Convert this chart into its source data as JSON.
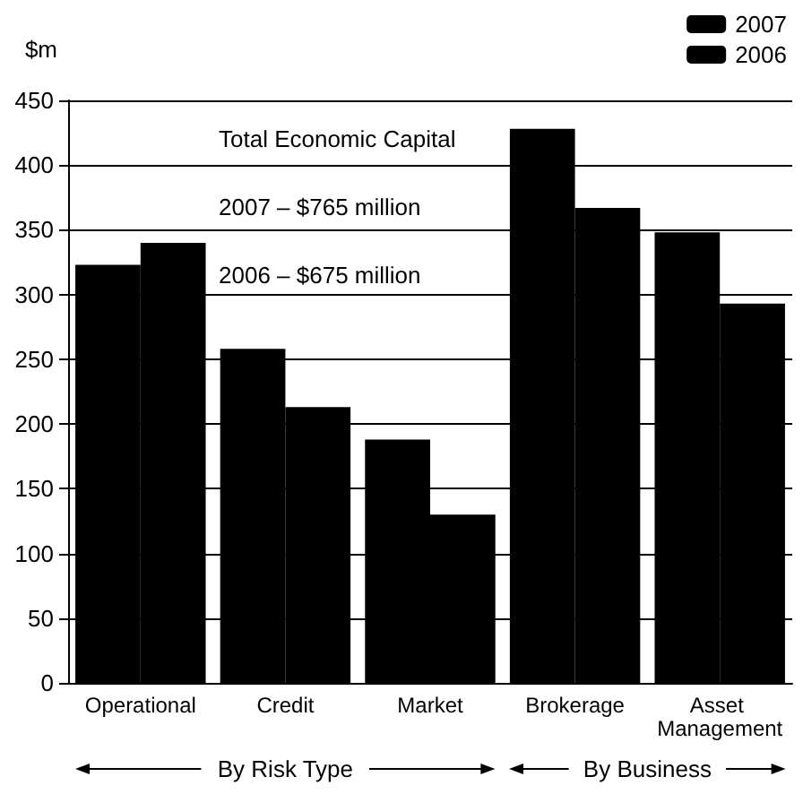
{
  "chart_data": {
    "type": "bar",
    "ylabel": "$m",
    "categories": [
      "Operational",
      "Credit",
      "Market",
      "Brokerage",
      "Asset Management"
    ],
    "series": [
      {
        "name": "2007",
        "color": "#000000",
        "values": [
          323,
          258,
          188,
          428,
          348
        ]
      },
      {
        "name": "2006",
        "color": "#000000",
        "values": [
          340,
          213,
          130,
          367,
          293
        ]
      }
    ],
    "ylim": [
      0,
      450
    ],
    "yticks": [
      0,
      50,
      100,
      150,
      200,
      250,
      300,
      350,
      400,
      450
    ],
    "grid": "y",
    "legend": "top right",
    "annotations": [
      "Total Economic Capital",
      "2007 – $765 million",
      "2006 – $675 million",
      "By Risk Type",
      "By Business"
    ]
  }
}
